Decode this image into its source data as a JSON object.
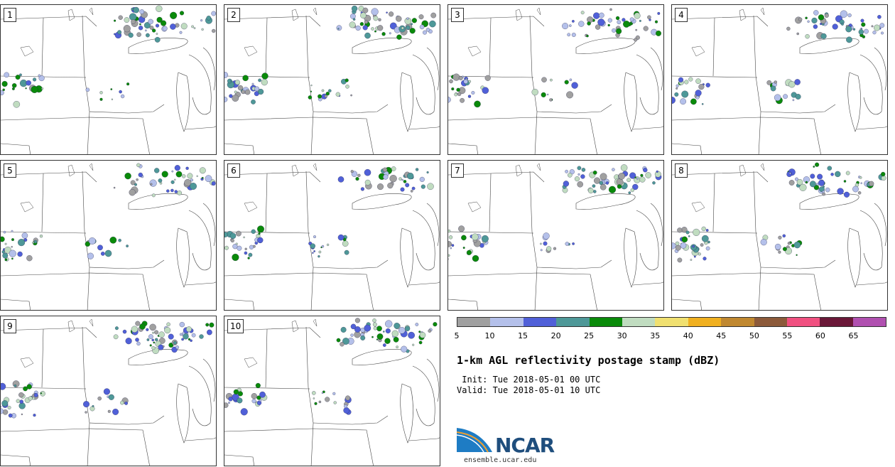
{
  "panels": [
    {
      "label": "1"
    },
    {
      "label": "2"
    },
    {
      "label": "3"
    },
    {
      "label": "4"
    },
    {
      "label": "5"
    },
    {
      "label": "6"
    },
    {
      "label": "7"
    },
    {
      "label": "8"
    },
    {
      "label": "9"
    },
    {
      "label": "10"
    }
  ],
  "legend": {
    "ticks": [
      "5",
      "10",
      "15",
      "20",
      "25",
      "30",
      "35",
      "40",
      "45",
      "50",
      "55",
      "60",
      "65"
    ],
    "colors": [
      "#a0a0a0",
      "#b4c0ea",
      "#5060d8",
      "#4e9898",
      "#0a8a0a",
      "#c0dcc0",
      "#f0e070",
      "#f0b020",
      "#c08830",
      "#8c5a3a",
      "#f05080",
      "#6a1838",
      "#b050b0"
    ]
  },
  "title": "1-km AGL reflectivity postage stamp (dBZ)",
  "init_line": " Init: Tue 2018-05-01 00 UTC",
  "valid_line": "Valid: Tue 2018-05-01 10 UTC",
  "logo_text": "NCAR",
  "url": "ensemble.ucar.edu"
}
